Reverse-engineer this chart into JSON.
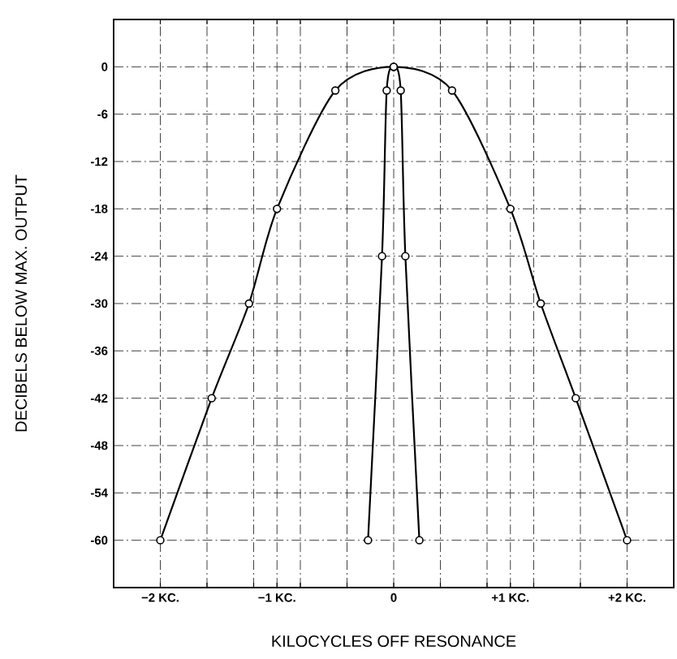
{
  "chart_data": {
    "type": "line",
    "xlabel": "KILOCYCLES OFF RESONANCE",
    "ylabel": "DECIBELS BELOW MAX. OUTPUT",
    "series": [
      {
        "color": "#000000",
        "x": [
          -2,
          -1.56,
          -1.24,
          -1.0,
          -0.5,
          0,
          0.5,
          1.0,
          1.26,
          1.56,
          2
        ],
        "values": [
          -60,
          -42,
          -30,
          -18,
          -3,
          0,
          -3,
          -18,
          -30,
          -42,
          -60
        ]
      },
      {
        "color": "#000000",
        "x": [
          -0.22,
          -0.1,
          -0.06,
          0,
          0.06,
          0.1,
          0.22
        ],
        "values": [
          -60,
          -24,
          -3,
          0,
          -3,
          -24,
          -60
        ]
      }
    ],
    "xlim": [
      -2.4,
      2.4
    ],
    "ylim": [
      -66,
      6
    ],
    "xticks": [
      {
        "value": -2,
        "label": "−2 KC."
      },
      {
        "value": -1.6,
        "label": null
      },
      {
        "value": -1.2,
        "label": null
      },
      {
        "value": -1,
        "label": "−1 KC."
      },
      {
        "value": -0.8,
        "label": null
      },
      {
        "value": -0.4,
        "label": null
      },
      {
        "value": 0,
        "label": "0"
      },
      {
        "value": 0.4,
        "label": null
      },
      {
        "value": 0.8,
        "label": null
      },
      {
        "value": 1,
        "label": "+1 KC."
      },
      {
        "value": 1.2,
        "label": null
      },
      {
        "value": 1.6,
        "label": null
      },
      {
        "value": 2,
        "label": "+2 KC."
      }
    ],
    "yticks": [
      0,
      -6,
      -12,
      -18,
      -24,
      -30,
      -36,
      -42,
      -48,
      -54,
      -60
    ],
    "grid": true,
    "marker": "circle",
    "line_style": "solid"
  }
}
